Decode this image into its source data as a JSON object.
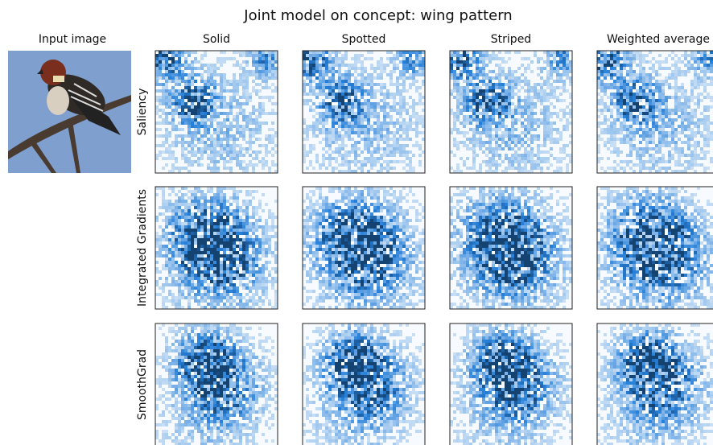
{
  "title": "Joint model on concept: wing pattern",
  "input_label": "Input image",
  "columns": [
    "Solid",
    "Spotted",
    "Striped",
    "Weighted average"
  ],
  "rows": [
    "Saliency",
    "Integrated Gradients",
    "SmoothGrad"
  ]
}
